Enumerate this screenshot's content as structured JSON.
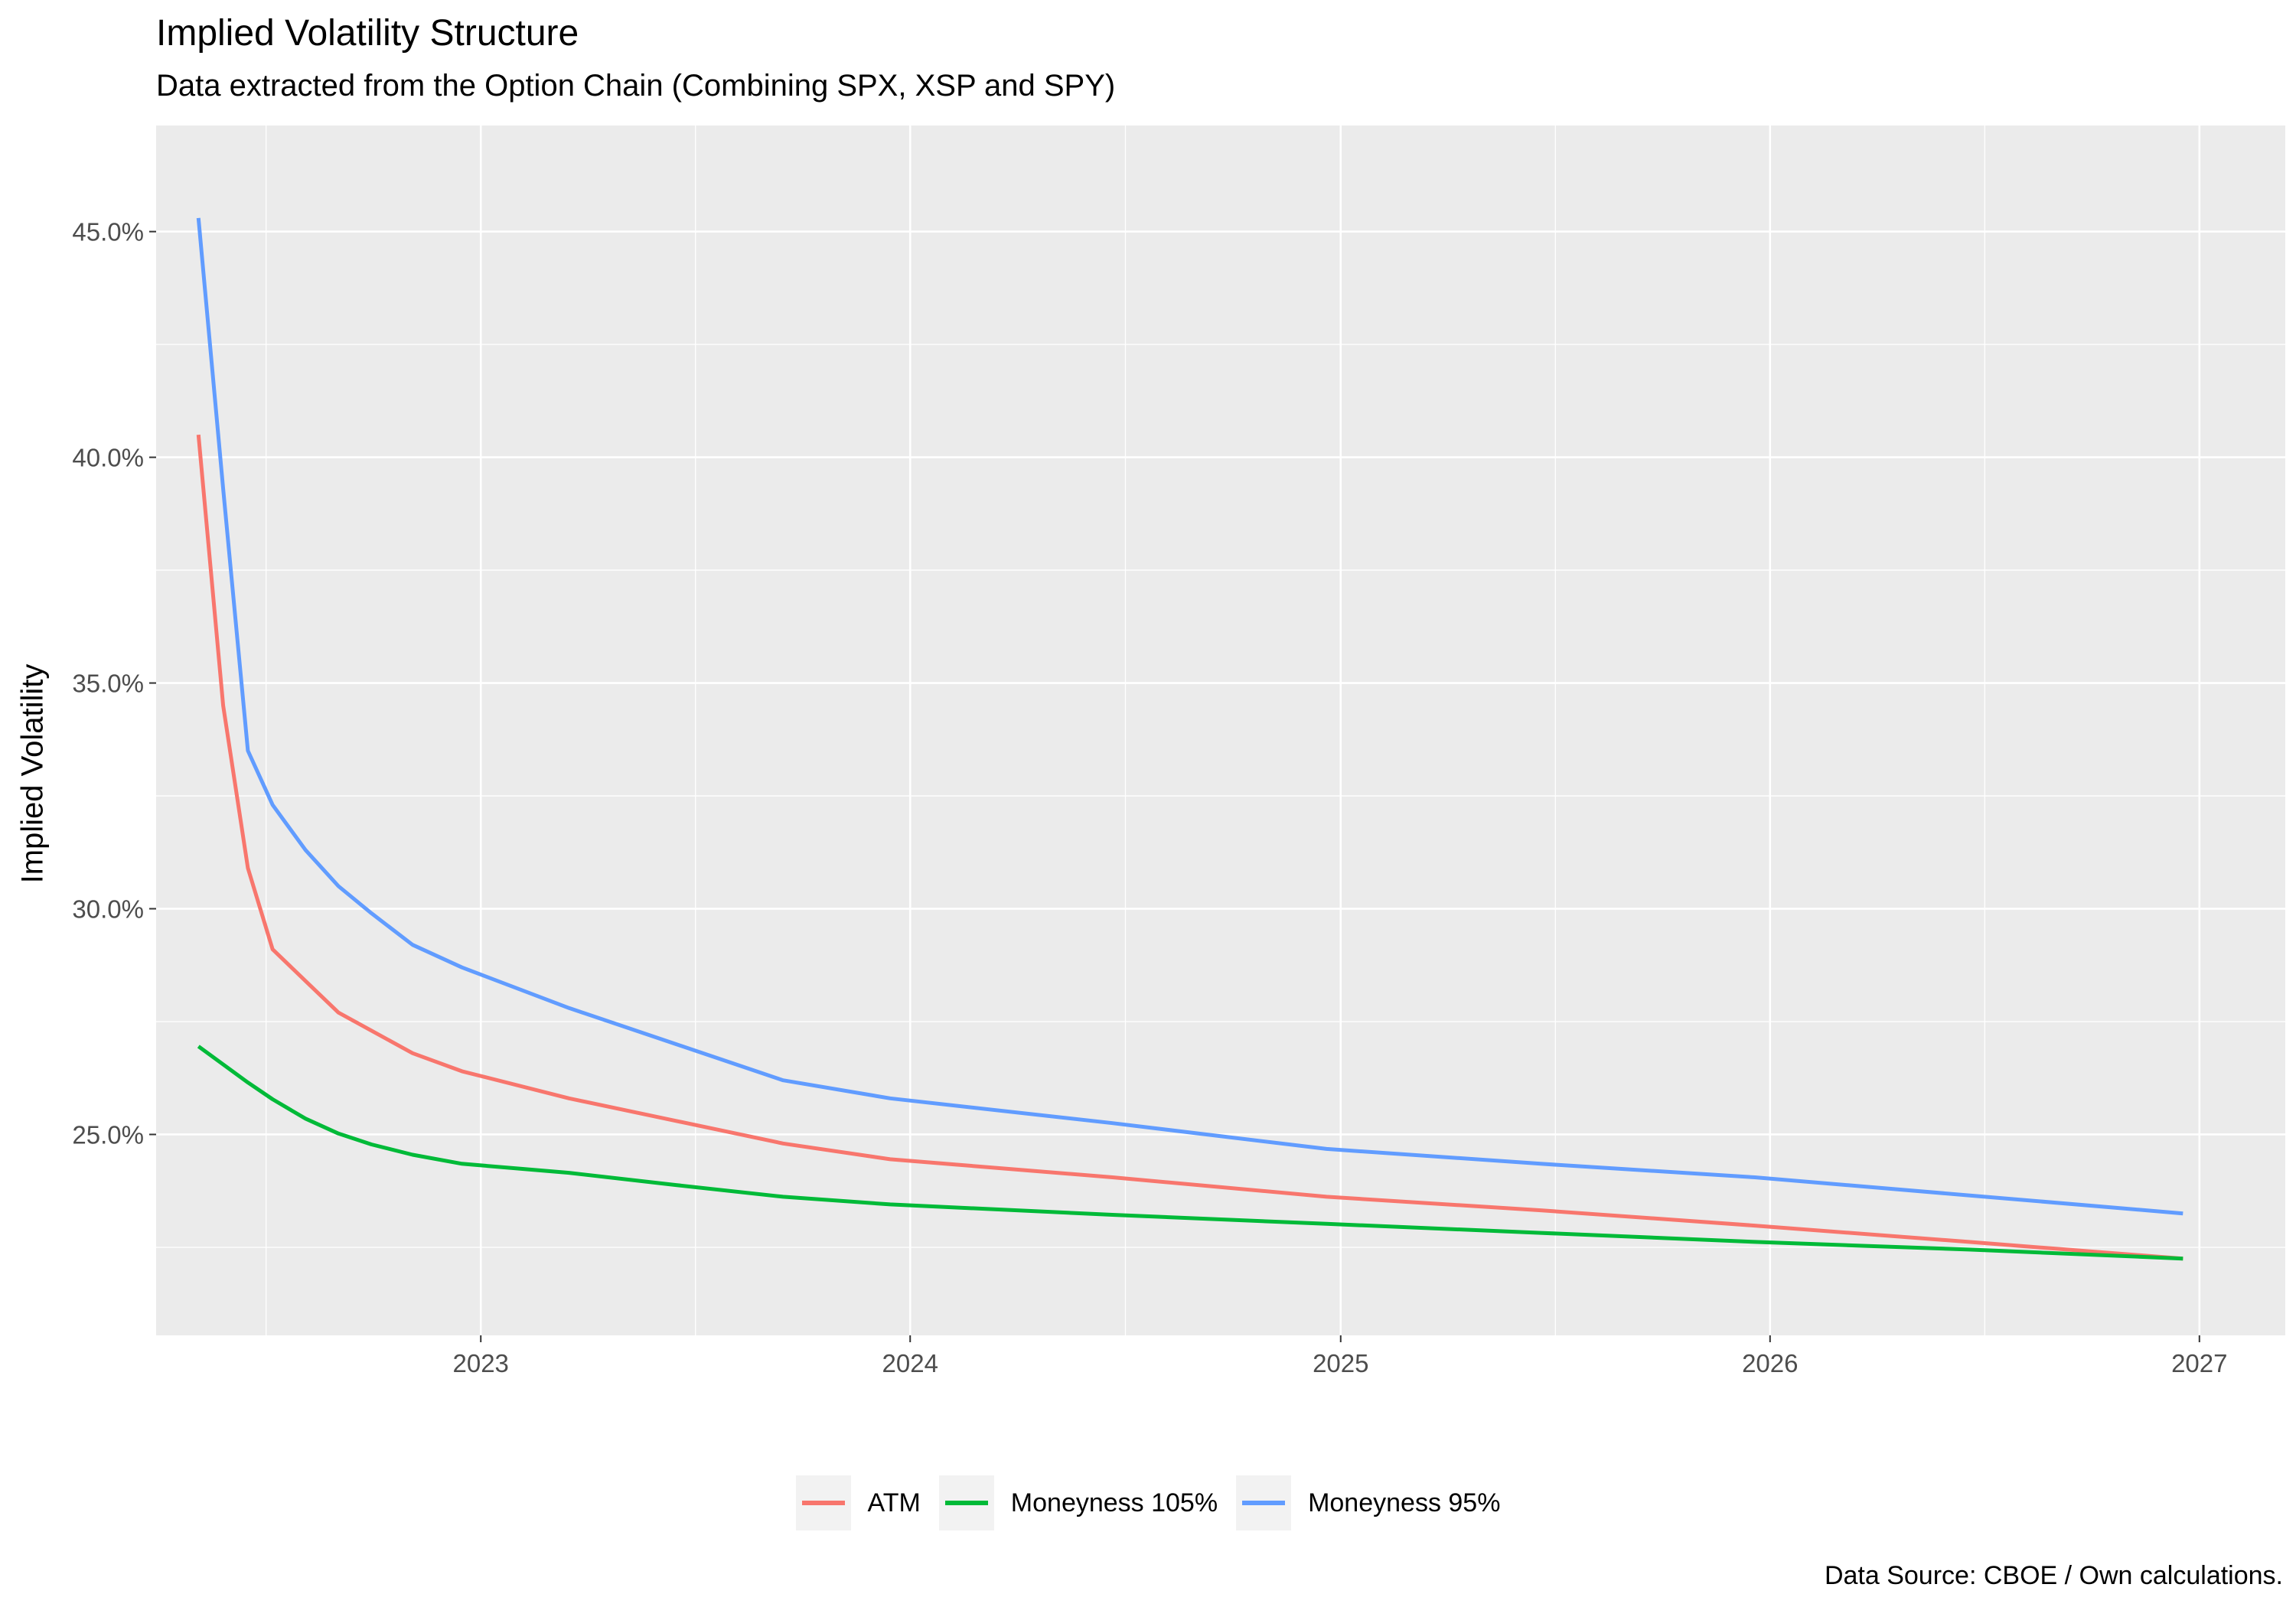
{
  "chart_data": {
    "type": "line",
    "title": "Implied Volatility Structure",
    "subtitle": "Data extracted from the Option Chain (Combining SPX, XSP and SPY)",
    "caption": "Data Source: CBOE / Own calculations.",
    "xlabel": "",
    "ylabel": "Implied Volatility",
    "x_ticks": [
      2023,
      2024,
      2025,
      2026,
      2027
    ],
    "y_ticks": [
      0.25,
      0.3,
      0.35,
      0.4,
      0.45
    ],
    "y_tick_labels": [
      "25.0%",
      "30.0%",
      "35.0%",
      "40.0%",
      "45.0%"
    ],
    "xlim": [
      "2022-03-31",
      "2027-03-15"
    ],
    "ylim": [
      0.2055,
      0.4735
    ],
    "grid": true,
    "legend_position": "bottom",
    "x": [
      "2022-05-06",
      "2022-05-27",
      "2022-06-17",
      "2022-07-08",
      "2022-08-05",
      "2022-09-02",
      "2022-09-30",
      "2022-11-04",
      "2022-12-16",
      "2023-03-17",
      "2023-06-16",
      "2023-09-15",
      "2023-12-15",
      "2024-06-21",
      "2024-12-20",
      "2025-06-20",
      "2025-12-19",
      "2026-06-19",
      "2026-12-18"
    ],
    "series": [
      {
        "name": "ATM",
        "color": "#F8766D",
        "values": [
          0.405,
          0.345,
          0.309,
          0.291,
          0.284,
          0.277,
          0.273,
          0.268,
          0.264,
          0.258,
          0.253,
          0.248,
          0.2445,
          0.2405,
          0.2362,
          0.2332,
          0.2298,
          0.2262,
          0.2225
        ]
      },
      {
        "name": "Moneyness 105%",
        "color": "#00BA38",
        "values": [
          0.2695,
          0.2655,
          0.2615,
          0.2578,
          0.2535,
          0.2502,
          0.2478,
          0.2455,
          0.2435,
          0.2415,
          0.2388,
          0.2362,
          0.2345,
          0.2322,
          0.2302,
          0.2282,
          0.2262,
          0.2245,
          0.2225
        ]
      },
      {
        "name": "Moneyness 95%",
        "color": "#619CFF",
        "values": [
          0.453,
          0.393,
          0.335,
          0.323,
          0.313,
          0.305,
          0.299,
          0.292,
          0.287,
          0.278,
          0.27,
          0.262,
          0.258,
          0.2525,
          0.2468,
          0.2435,
          0.2405,
          0.2365,
          0.2325
        ]
      }
    ]
  }
}
